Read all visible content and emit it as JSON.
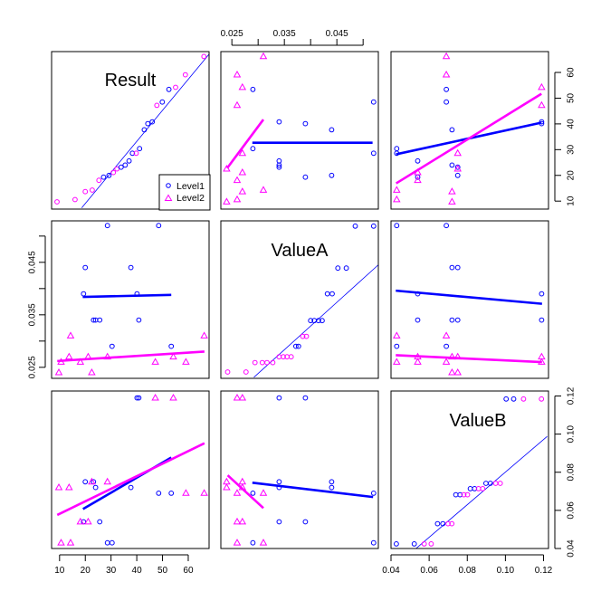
{
  "colors": {
    "level1": "#0000ff",
    "level2": "#ff00ff",
    "axis": "#000000"
  },
  "chart_data": {
    "type": "scatter",
    "title": "",
    "variables": [
      "Result",
      "ValueA",
      "ValueB"
    ],
    "variable_ranges": {
      "Result": [
        6.9,
        68.1
      ],
      "ValueA": [
        0.0229,
        0.0529
      ],
      "ValueB": [
        0.04,
        0.1226
      ]
    },
    "axis_ticks": {
      "Result": {
        "values": [
          10,
          20,
          30,
          40,
          50,
          60
        ],
        "labels": [
          "10",
          "20",
          "30",
          "40",
          "50",
          "60"
        ]
      },
      "ValueA": {
        "values": [
          0.025,
          0.03,
          0.035,
          0.04,
          0.045,
          0.05
        ],
        "labels": [
          "0.025",
          "",
          "0.035",
          "",
          "0.045",
          ""
        ]
      },
      "ValueB": {
        "values": [
          0.04,
          0.06,
          0.08,
          0.1,
          0.12
        ],
        "labels": [
          "0.04",
          "0.06",
          "0.08",
          "0.10",
          "0.12"
        ]
      }
    },
    "legend": {
      "position": "bottom-right of Result panel",
      "entries": [
        {
          "label": "Level1",
          "marker": "circle",
          "color": "#0000ff"
        },
        {
          "label": "Level2",
          "marker": "triangle",
          "color": "#ff00ff"
        }
      ]
    },
    "groups": [
      {
        "name": "Level1",
        "marker": "circle",
        "Result": [
          53.4,
          30.4,
          40.8,
          25.6,
          24.0,
          23.2,
          40.1,
          19.3,
          37.7,
          20.0,
          48.5,
          28.6
        ],
        "ValueA": [
          0.029,
          0.029,
          0.034,
          0.034,
          0.034,
          0.034,
          0.039,
          0.039,
          0.044,
          0.044,
          0.052,
          0.052
        ],
        "ValueB": [
          0.069,
          0.043,
          0.119,
          0.054,
          0.072,
          0.075,
          0.119,
          0.054,
          0.072,
          0.075,
          0.069,
          0.043
        ]
      },
      {
        "name": "Level2",
        "marker": "triangle",
        "Result": [
          66.2,
          59.1,
          54.2,
          47.2,
          28.6,
          22.5,
          21.1,
          18.1,
          14.3,
          13.7,
          10.6,
          9.7
        ],
        "ValueA": [
          0.031,
          0.026,
          0.027,
          0.026,
          0.027,
          0.024,
          0.027,
          0.026,
          0.031,
          0.027,
          0.026,
          0.024
        ],
        "ValueB": [
          0.069,
          0.069,
          0.119,
          0.119,
          0.075,
          0.075,
          0.054,
          0.054,
          0.043,
          0.072,
          0.043,
          0.072
        ]
      }
    ],
    "diagonal": {
      "Result": {
        "label": "Result",
        "points": [
          {
            "q": 9.0,
            "v": 9.7,
            "g": "Level2"
          },
          {
            "q": 16.0,
            "v": 10.6,
            "g": "Level2"
          },
          {
            "q": 20.0,
            "v": 13.7,
            "g": "Level2"
          },
          {
            "q": 22.7,
            "v": 14.3,
            "g": "Level2"
          },
          {
            "q": 25.3,
            "v": 18.1,
            "g": "Level2"
          },
          {
            "q": 27.1,
            "v": 19.3,
            "g": "Level1"
          },
          {
            "q": 29.2,
            "v": 20.0,
            "g": "Level1"
          },
          {
            "q": 30.9,
            "v": 21.1,
            "g": "Level2"
          },
          {
            "q": 32.3,
            "v": 22.5,
            "g": "Level2"
          },
          {
            "q": 33.9,
            "v": 23.2,
            "g": "Level1"
          },
          {
            "q": 35.5,
            "v": 24.0,
            "g": "Level1"
          },
          {
            "q": 37.0,
            "v": 25.6,
            "g": "Level1"
          },
          {
            "q": 38.3,
            "v": 28.6,
            "g": "Level1"
          },
          {
            "q": 39.8,
            "v": 28.6,
            "g": "Level2"
          },
          {
            "q": 41.1,
            "v": 30.4,
            "g": "Level1"
          },
          {
            "q": 42.9,
            "v": 37.7,
            "g": "Level1"
          },
          {
            "q": 44.3,
            "v": 40.1,
            "g": "Level1"
          },
          {
            "q": 46.0,
            "v": 40.8,
            "g": "Level1"
          },
          {
            "q": 47.8,
            "v": 47.2,
            "g": "Level2"
          },
          {
            "q": 49.9,
            "v": 48.5,
            "g": "Level1"
          },
          {
            "q": 52.5,
            "v": 53.4,
            "g": "Level1"
          },
          {
            "q": 55.1,
            "v": 54.2,
            "g": "Level2"
          },
          {
            "q": 58.9,
            "v": 59.1,
            "g": "Level2"
          },
          {
            "q": 66.1,
            "v": 66.2,
            "g": "Level2"
          }
        ],
        "ref_line": [
          [
            18.6,
            7.4
          ],
          [
            68.1,
            67.1
          ]
        ]
      },
      "ValueA": {
        "label": "ValueA",
        "points": [
          {
            "q": 0.0242,
            "v": 0.0241,
            "g": "Level2"
          },
          {
            "q": 0.0277,
            "v": 0.0241,
            "g": "Level2"
          },
          {
            "q": 0.0294,
            "v": 0.0259,
            "g": "Level2"
          },
          {
            "q": 0.0308,
            "v": 0.0259,
            "g": "Level2"
          },
          {
            "q": 0.0317,
            "v": 0.0259,
            "g": "Level2"
          },
          {
            "q": 0.0328,
            "v": 0.0259,
            "g": "Level2"
          },
          {
            "q": 0.034,
            "v": 0.027,
            "g": "Level2"
          },
          {
            "q": 0.0348,
            "v": 0.027,
            "g": "Level2"
          },
          {
            "q": 0.0355,
            "v": 0.027,
            "g": "Level2"
          },
          {
            "q": 0.0363,
            "v": 0.027,
            "g": "Level2"
          },
          {
            "q": 0.0372,
            "v": 0.029,
            "g": "Level1"
          },
          {
            "q": 0.0377,
            "v": 0.029,
            "g": "Level1"
          },
          {
            "q": 0.0385,
            "v": 0.0309,
            "g": "Level2"
          },
          {
            "q": 0.0392,
            "v": 0.0309,
            "g": "Level2"
          },
          {
            "q": 0.04,
            "v": 0.0339,
            "g": "Level1"
          },
          {
            "q": 0.0407,
            "v": 0.0339,
            "g": "Level1"
          },
          {
            "q": 0.0415,
            "v": 0.0339,
            "g": "Level1"
          },
          {
            "q": 0.0422,
            "v": 0.0339,
            "g": "Level1"
          },
          {
            "q": 0.0432,
            "v": 0.039,
            "g": "Level1"
          },
          {
            "q": 0.0441,
            "v": 0.039,
            "g": "Level1"
          },
          {
            "q": 0.0452,
            "v": 0.0439,
            "g": "Level1"
          },
          {
            "q": 0.0468,
            "v": 0.0439,
            "g": "Level1"
          },
          {
            "q": 0.0485,
            "v": 0.0519,
            "g": "Level1"
          },
          {
            "q": 0.052,
            "v": 0.0519,
            "g": "Level1"
          }
        ],
        "ref_line": [
          [
            0.0292,
            0.0231
          ],
          [
            0.0531,
            0.0447
          ]
        ]
      },
      "ValueB": {
        "label": "ValueB",
        "points": [
          {
            "q": 0.0428,
            "v": 0.0424,
            "g": "Level1"
          },
          {
            "q": 0.0522,
            "v": 0.0424,
            "g": "Level1"
          },
          {
            "q": 0.0574,
            "v": 0.0424,
            "g": "Level2"
          },
          {
            "q": 0.0611,
            "v": 0.0424,
            "g": "Level2"
          },
          {
            "q": 0.0644,
            "v": 0.053,
            "g": "Level1"
          },
          {
            "q": 0.0672,
            "v": 0.053,
            "g": "Level1"
          },
          {
            "q": 0.0699,
            "v": 0.053,
            "g": "Level2"
          },
          {
            "q": 0.0719,
            "v": 0.053,
            "g": "Level2"
          },
          {
            "q": 0.074,
            "v": 0.0682,
            "g": "Level1"
          },
          {
            "q": 0.0762,
            "v": 0.0682,
            "g": "Level1"
          },
          {
            "q": 0.0782,
            "v": 0.0682,
            "g": "Level2"
          },
          {
            "q": 0.0801,
            "v": 0.0682,
            "g": "Level2"
          },
          {
            "q": 0.0816,
            "v": 0.0714,
            "g": "Level1"
          },
          {
            "q": 0.0838,
            "v": 0.0714,
            "g": "Level1"
          },
          {
            "q": 0.0859,
            "v": 0.0714,
            "g": "Level2"
          },
          {
            "q": 0.0881,
            "v": 0.0714,
            "g": "Level2"
          },
          {
            "q": 0.0898,
            "v": 0.0742,
            "g": "Level1"
          },
          {
            "q": 0.0921,
            "v": 0.0742,
            "g": "Level1"
          },
          {
            "q": 0.0949,
            "v": 0.0742,
            "g": "Level2"
          },
          {
            "q": 0.0973,
            "v": 0.0742,
            "g": "Level2"
          },
          {
            "q": 0.1004,
            "v": 0.1184,
            "g": "Level1"
          },
          {
            "q": 0.1043,
            "v": 0.1184,
            "g": "Level1"
          },
          {
            "q": 0.1095,
            "v": 0.1184,
            "g": "Level2"
          },
          {
            "q": 0.1189,
            "v": 0.1184,
            "g": "Level2"
          }
        ],
        "ref_line": [
          [
            0.0522,
            0.0392
          ],
          [
            0.1219,
            0.0988
          ]
        ]
      }
    },
    "fit_lines": [
      {
        "x": "ValueA",
        "y": "Result",
        "group": "Level1",
        "from": [
          0.0289,
          32.7
        ],
        "to": [
          0.0518,
          32.7
        ]
      },
      {
        "x": "ValueA",
        "y": "Result",
        "group": "Level2",
        "from": [
          0.0241,
          22.8
        ],
        "to": [
          0.031,
          41.7
        ]
      },
      {
        "x": "ValueB",
        "y": "Result",
        "group": "Level1",
        "from": [
          0.0427,
          28.2
        ],
        "to": [
          0.1189,
          40.5
        ]
      },
      {
        "x": "ValueB",
        "y": "Result",
        "group": "Level2",
        "from": [
          0.0427,
          16.9
        ],
        "to": [
          0.1189,
          51.7
        ]
      },
      {
        "x": "Result",
        "y": "ValueA",
        "group": "Level1",
        "from": [
          19.0,
          0.0384
        ],
        "to": [
          53.4,
          0.0388
        ]
      },
      {
        "x": "Result",
        "y": "ValueA",
        "group": "Level2",
        "from": [
          9.1,
          0.0262
        ],
        "to": [
          66.3,
          0.028
        ]
      },
      {
        "x": "ValueB",
        "y": "ValueA",
        "group": "Level1",
        "from": [
          0.0425,
          0.0396
        ],
        "to": [
          0.1192,
          0.0371
        ]
      },
      {
        "x": "ValueB",
        "y": "ValueA",
        "group": "Level2",
        "from": [
          0.0425,
          0.0273
        ],
        "to": [
          0.1192,
          0.026
        ]
      },
      {
        "x": "Result",
        "y": "ValueB",
        "group": "Level1",
        "from": [
          19.1,
          0.0607
        ],
        "to": [
          53.4,
          0.0877
        ]
      },
      {
        "x": "Result",
        "y": "ValueB",
        "group": "Level2",
        "from": [
          9.1,
          0.0576
        ],
        "to": [
          66.3,
          0.0952
        ]
      },
      {
        "x": "ValueA",
        "y": "ValueB",
        "group": "Level1",
        "from": [
          0.0289,
          0.0745
        ],
        "to": [
          0.0519,
          0.067
        ]
      },
      {
        "x": "ValueA",
        "y": "ValueB",
        "group": "Level2",
        "from": [
          0.0242,
          0.0784
        ],
        "to": [
          0.031,
          0.0612
        ]
      }
    ]
  }
}
